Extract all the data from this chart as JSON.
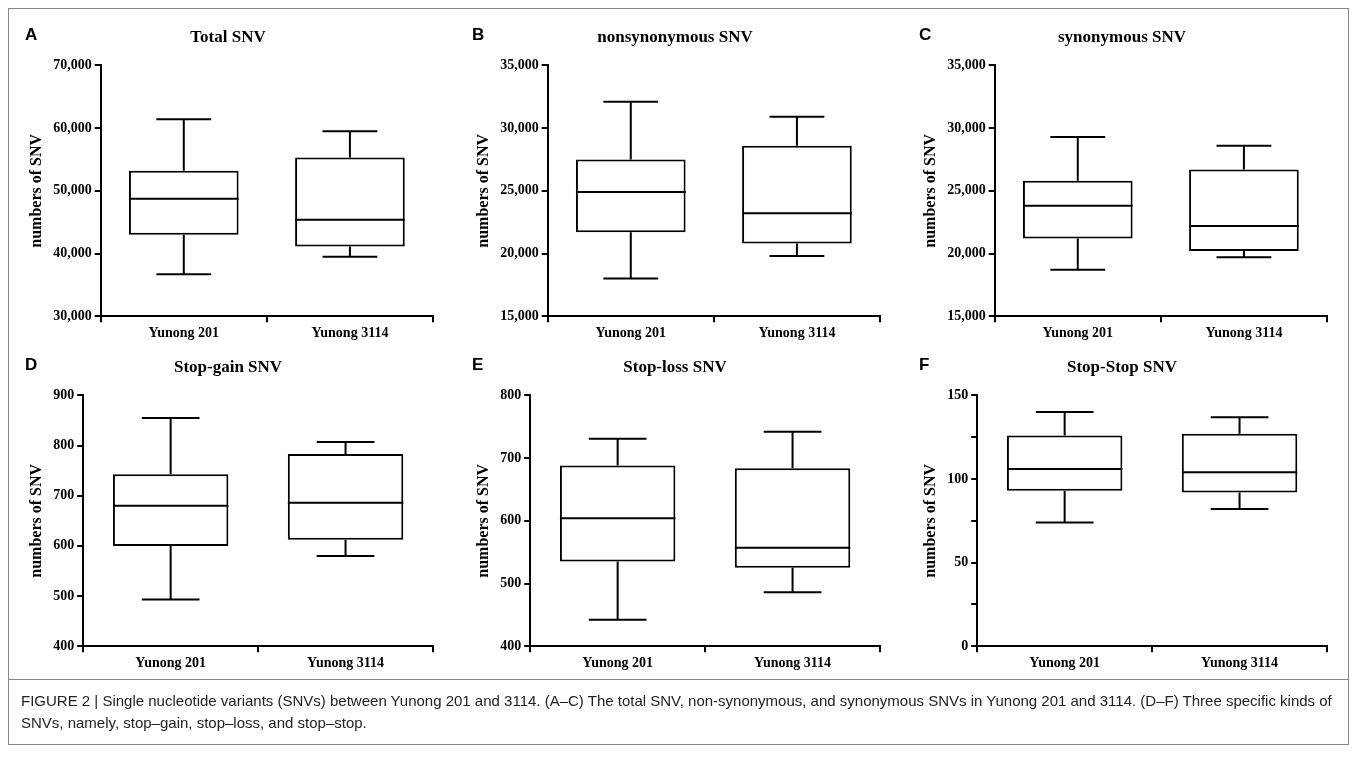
{
  "chart_data": [
    {
      "type": "box",
      "title": "Total SNV",
      "ylabel": "numbers of SNV",
      "categories": [
        "Yunong 201",
        "Yunong 3114"
      ],
      "color": "#000000",
      "annotations": [
        "A"
      ],
      "ylim": [
        30000,
        70000
      ],
      "yticks": [
        {
          "value": 30000,
          "label": "30,000"
        },
        {
          "value": 40000,
          "label": "40,000"
        },
        {
          "value": 50000,
          "label": "50,000"
        },
        {
          "value": 60000,
          "label": "60,000"
        },
        {
          "value": 70000,
          "label": "70,000"
        }
      ],
      "boxes": [
        {
          "low": 36700,
          "q1": 43000,
          "median": 48750,
          "q3": 53200,
          "high": 61400
        },
        {
          "low": 39500,
          "q1": 41100,
          "median": 45400,
          "q3": 55300,
          "high": 59500
        }
      ]
    },
    {
      "type": "box",
      "title": "nonsynonymous SNV",
      "ylabel": "numbers of SNV",
      "categories": [
        "Yunong 201",
        "Yunong 3114"
      ],
      "color": "#000000",
      "annotations": [
        "B"
      ],
      "ylim": [
        15000,
        35000
      ],
      "yticks": [
        {
          "value": 15000,
          "label": "15,000"
        },
        {
          "value": 20000,
          "label": "20,000"
        },
        {
          "value": 25000,
          "label": "25,000"
        },
        {
          "value": 30000,
          "label": "30,000"
        },
        {
          "value": 35000,
          "label": "35,000"
        }
      ],
      "boxes": [
        {
          "low": 18000,
          "q1": 21700,
          "median": 24900,
          "q3": 27500,
          "high": 32100
        },
        {
          "low": 19800,
          "q1": 20800,
          "median": 23200,
          "q3": 28600,
          "high": 30900
        }
      ]
    },
    {
      "type": "box",
      "title": "synonymous SNV",
      "ylabel": "numbers of SNV",
      "categories": [
        "Yunong 201",
        "Yunong 3114"
      ],
      "color": "#000000",
      "annotations": [
        "C"
      ],
      "ylim": [
        15000,
        35000
      ],
      "yticks": [
        {
          "value": 15000,
          "label": "15,000"
        },
        {
          "value": 20000,
          "label": "20,000"
        },
        {
          "value": 25000,
          "label": "25,000"
        },
        {
          "value": 30000,
          "label": "30,000"
        },
        {
          "value": 35000,
          "label": "35,000"
        }
      ],
      "boxes": [
        {
          "low": 18700,
          "q1": 21200,
          "median": 23800,
          "q3": 25800,
          "high": 29300
        },
        {
          "low": 19700,
          "q1": 20200,
          "median": 22200,
          "q3": 26700,
          "high": 28600
        }
      ]
    },
    {
      "type": "box",
      "title": "Stop-gain SNV",
      "ylabel": "numbers of SNV",
      "categories": [
        "Yunong 201",
        "Yunong 3114"
      ],
      "color": "#000000",
      "annotations": [
        "D"
      ],
      "ylim": [
        400,
        900
      ],
      "yticks": [
        400,
        500,
        600,
        700,
        800,
        900
      ],
      "boxes": [
        {
          "low": 493,
          "q1": 600,
          "median": 680,
          "q3": 743,
          "high": 855
        },
        {
          "low": 580,
          "q1": 612,
          "median": 686,
          "q3": 783,
          "high": 807
        }
      ]
    },
    {
      "type": "box",
      "title": "Stop-loss SNV",
      "ylabel": "numbers of SNV",
      "categories": [
        "Yunong 201",
        "Yunong 3114"
      ],
      "color": "#000000",
      "annotations": [
        "E"
      ],
      "ylim": [
        400,
        800
      ],
      "yticks": [
        400,
        500,
        600,
        700,
        800
      ],
      "boxes": [
        {
          "low": 442,
          "q1": 535,
          "median": 604,
          "q3": 688,
          "high": 731
        },
        {
          "low": 486,
          "q1": 525,
          "median": 557,
          "q3": 684,
          "high": 742
        }
      ]
    },
    {
      "type": "box",
      "title": "Stop-Stop SNV",
      "ylabel": "numbers of SNV",
      "categories": [
        "Yunong 201",
        "Yunong 3114"
      ],
      "color": "#000000",
      "annotations": [
        "F",
        "FIGURE 2 | Single nucleotide variants (SNVs) between Yunong 201 and 3114. (A–C) The total SNV, non-synonymous, and synonymous SNVs in Yunong 201 and 3114. (D–F) Three specific kinds of SNVs, namely, stop–gain, stop–loss, and stop–stop."
      ],
      "ylim": [
        0,
        150
      ],
      "yticks": [
        0,
        {
          "value": 25,
          "label": null
        },
        50,
        {
          "value": 75,
          "label": null
        },
        100,
        {
          "value": 125,
          "label": null
        },
        150
      ],
      "boxes": [
        {
          "low": 74,
          "q1": 93,
          "median": 106,
          "q3": 126,
          "high": 140
        },
        {
          "low": 82,
          "q1": 92,
          "median": 104,
          "q3": 127,
          "high": 137
        }
      ]
    }
  ]
}
